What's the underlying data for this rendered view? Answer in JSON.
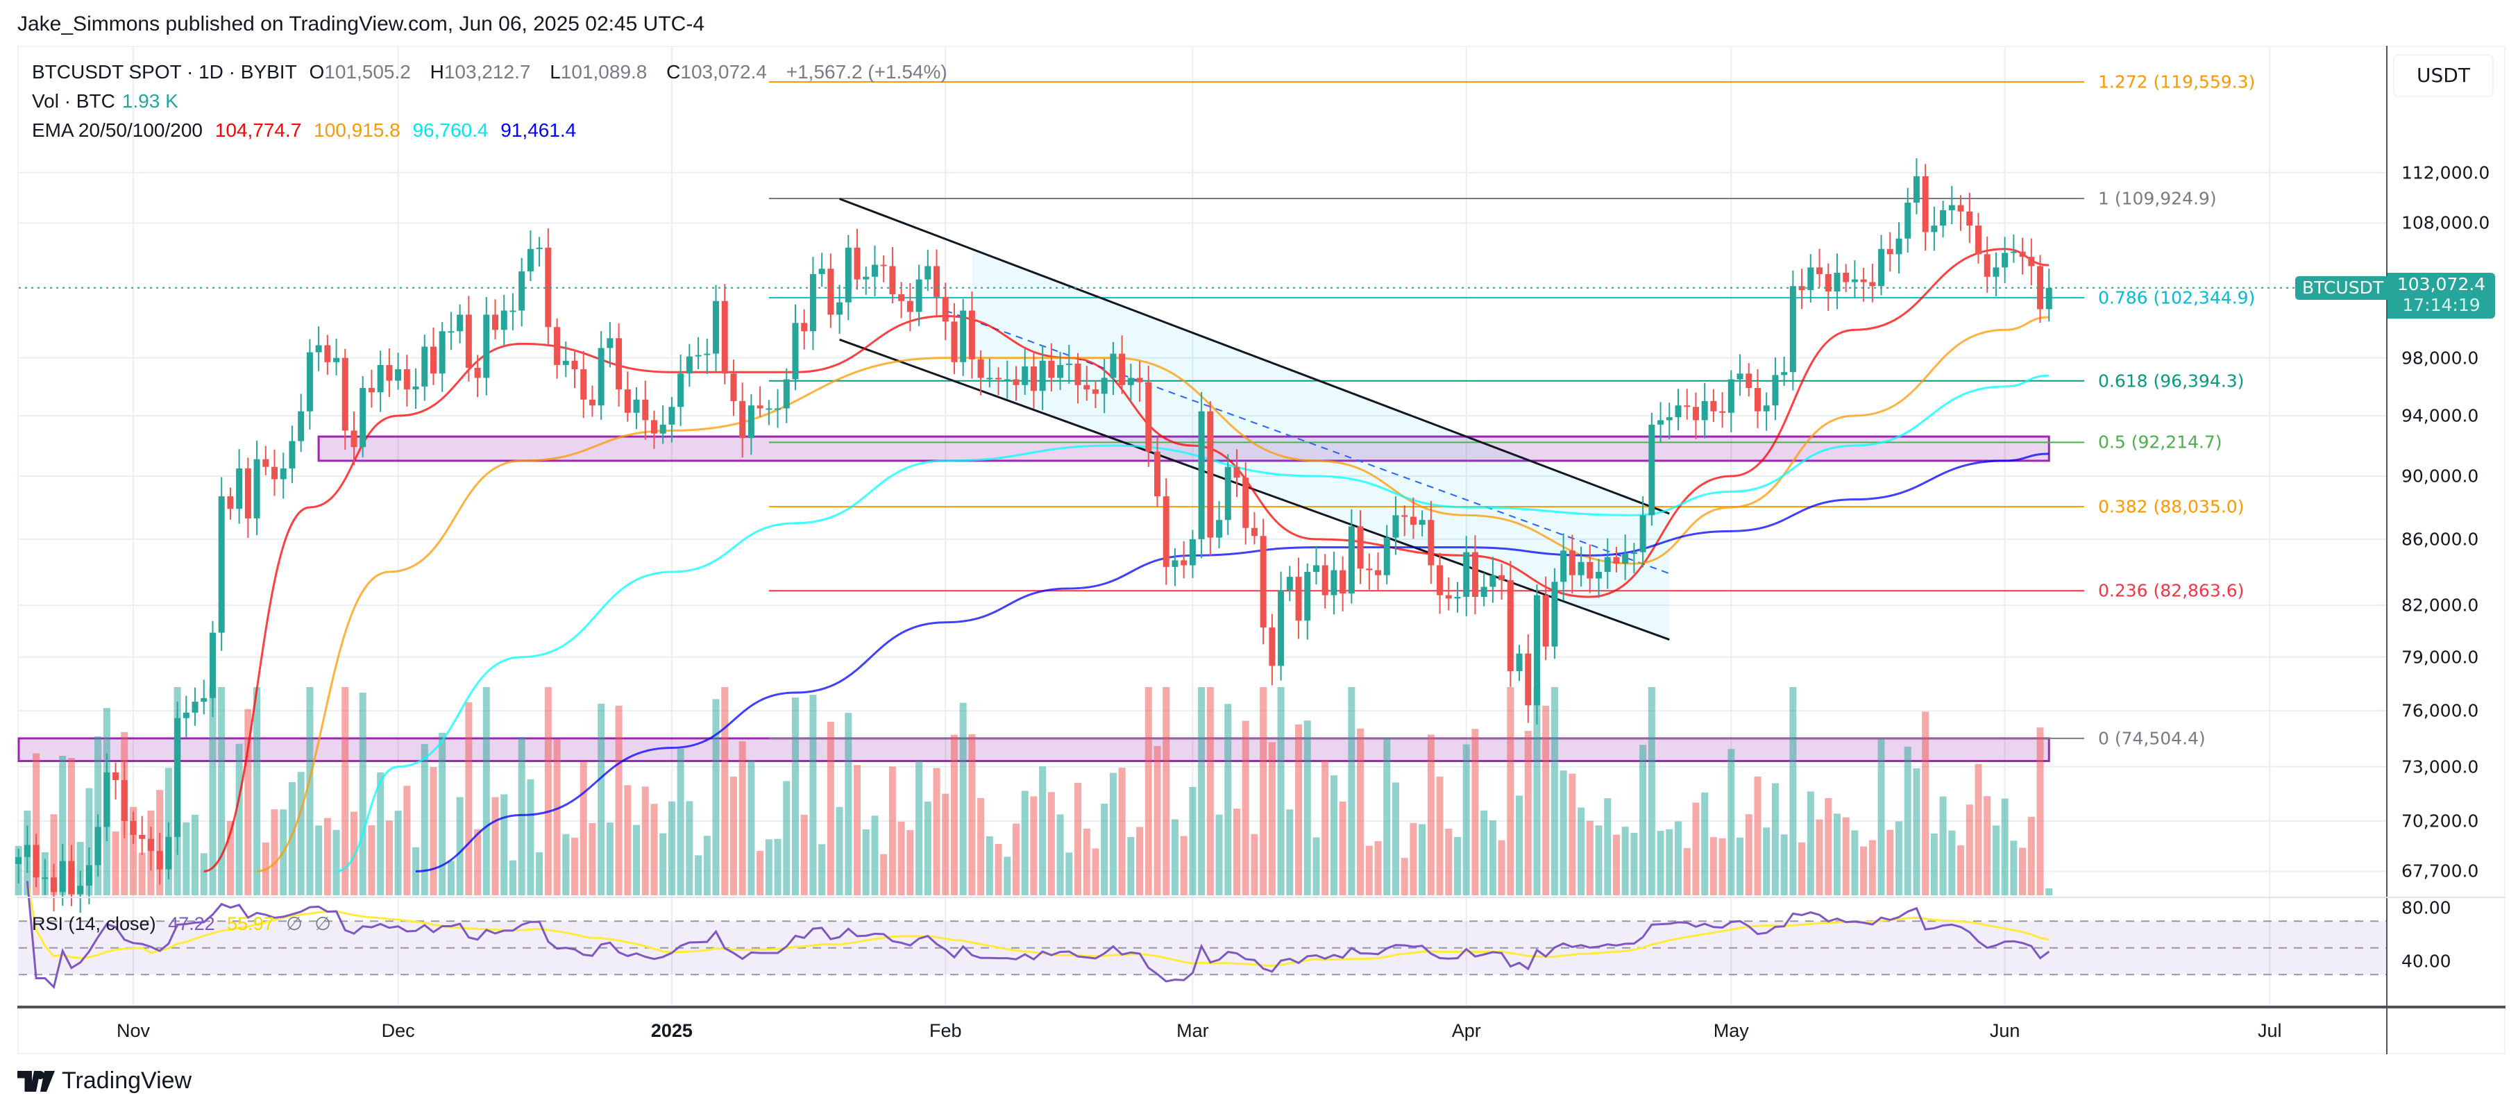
{
  "header": {
    "title": "Jake_Simmons published on TradingView.com, Jun 06, 2025 02:45 UTC-4"
  },
  "legend": {
    "symbol": "BTCUSDT SPOT · 1D · BYBIT",
    "o_label": "O",
    "o": "101,505.2",
    "h_label": "H",
    "h": "103,212.7",
    "l_label": "L",
    "l": "101,089.8",
    "c_label": "C",
    "c": "103,072.4",
    "change": "+1,567.2 (+1.54%)",
    "vol_label": "Vol · BTC",
    "vol": "1.93 K",
    "ema_label": "EMA 20/50/100/200",
    "ema20": "104,774.7",
    "ema50": "100,915.8",
    "ema100": "96,760.4",
    "ema200": "91,461.4"
  },
  "rsi_legend": {
    "label": "RSI (14, close)",
    "value": "47.22",
    "ma": "55.97",
    "na1": "∅",
    "na2": "∅"
  },
  "price_axis": {
    "currency": "USDT",
    "ticks": [
      "112,000.0",
      "108,000.0",
      "98,000.0",
      "94,000.0",
      "90,000.0",
      "86,000.0",
      "82,000.0",
      "79,000.0",
      "76,000.0",
      "73,000.0",
      "70,200.0",
      "67,700.0"
    ],
    "tick_values": [
      112000,
      108000,
      98000,
      94000,
      90000,
      86000,
      82000,
      79000,
      76000,
      73000,
      70200,
      67700
    ],
    "rsi_ticks": [
      "80.00",
      "40.00"
    ]
  },
  "last_price": {
    "symbol": "BTCUSDT",
    "price": "103,072.4",
    "countdown": "17:14:19",
    "value": 103072.4
  },
  "time_axis": {
    "labels": [
      {
        "text": "Nov",
        "date": "2024-11-01"
      },
      {
        "text": "Dec",
        "date": "2024-12-01"
      },
      {
        "text": "2025",
        "date": "2025-01-01"
      },
      {
        "text": "Feb",
        "date": "2025-02-01"
      },
      {
        "text": "Mar",
        "date": "2025-03-01"
      },
      {
        "text": "Apr",
        "date": "2025-04-01"
      },
      {
        "text": "May",
        "date": "2025-05-01"
      },
      {
        "text": "Jun",
        "date": "2025-06-01"
      },
      {
        "text": "Jul",
        "date": "2025-07-01"
      }
    ]
  },
  "fib_levels": [
    {
      "label": "1.272 (119,559.3)",
      "value": 119559.3,
      "color": "#ff9800"
    },
    {
      "label": "1 (109,924.9)",
      "value": 109924.9,
      "color": "#787b86"
    },
    {
      "label": "0.786 (102,344.9)",
      "value": 102344.9,
      "color": "#00bcd4"
    },
    {
      "label": "0.618 (96,394.3)",
      "value": 96394.3,
      "color": "#089981"
    },
    {
      "label": "0.5 (92,214.7)",
      "value": 92214.7,
      "color": "#4caf50"
    },
    {
      "label": "0.382 (88,035.0)",
      "value": 88035.0,
      "color": "#ff9800"
    },
    {
      "label": "0.236 (82,863.6)",
      "value": 82863.6,
      "color": "#f23645"
    },
    {
      "label": "0 (74,504.4)",
      "value": 74504.4,
      "color": "#787b86"
    }
  ],
  "footer": {
    "brand": "TradingView"
  },
  "colors": {
    "up": "#26a69a",
    "down": "#ef5350",
    "ema20": "#ff0000",
    "ema50": "#ff9800",
    "ema100": "#00ffff",
    "ema200": "#0000ff",
    "rsi": "#7e57c2",
    "rsi_ma": "#ffeb3b",
    "zone": "#9c27b0"
  },
  "chart_data": {
    "type": "candlestick",
    "start_date": "2024-10-19",
    "close_thousands": [
      68.4,
      69.0,
      67.4,
      67.4,
      66.7,
      68.2,
      66.6,
      67.0,
      68.0,
      69.9,
      72.7,
      72.3,
      70.2,
      69.5,
      69.3,
      68.7,
      67.8,
      69.4,
      75.6,
      75.9,
      76.5,
      76.7,
      80.4,
      88.7,
      87.9,
      90.5,
      87.3,
      91.1,
      90.6,
      89.8,
      90.5,
      92.3,
      94.3,
      98.4,
      98.9,
      97.7,
      98.0,
      93.0,
      91.9,
      95.9,
      95.6,
      97.5,
      96.4,
      97.2,
      95.8,
      96.0,
      98.8,
      96.9,
      99.9,
      99.9,
      101.1,
      97.3,
      96.6,
      101.1,
      100.0,
      101.4,
      101.4,
      104.3,
      106.0,
      106.1,
      100.2,
      97.5,
      97.8,
      97.2,
      95.1,
      94.7,
      98.7,
      99.4,
      95.8,
      94.2,
      95.1,
      93.7,
      92.8,
      93.4,
      94.6,
      96.9,
      98.1,
      98.2,
      98.3,
      102.1,
      96.9,
      95.0,
      92.5,
      94.7,
      94.5,
      94.5,
      94.5,
      96.5,
      100.5,
      99.9,
      104.1,
      104.5,
      101.1,
      102.0,
      106.1,
      103.7,
      103.9,
      104.8,
      104.7,
      102.6,
      102.1,
      101.3,
      103.7,
      104.7,
      102.4,
      100.6,
      97.7,
      101.4,
      97.9,
      96.6,
      96.6,
      96.5,
      96.5,
      96.1,
      97.4,
      95.7,
      97.8,
      96.6,
      97.5,
      97.6,
      96.1,
      95.8,
      95.5,
      96.6,
      98.3,
      96.1,
      96.6,
      96.3,
      91.6,
      88.7,
      84.3,
      84.7,
      84.4,
      86.0,
      94.3,
      86.1,
      87.2,
      90.6,
      89.9,
      86.7,
      86.2,
      80.7,
      78.5,
      82.9,
      83.7,
      81.1,
      84.0,
      84.4,
      82.6,
      84.1,
      82.7,
      86.8,
      84.2,
      84.1,
      83.8,
      86.1,
      87.5,
      87.4,
      86.9,
      87.2,
      84.4,
      82.6,
      82.4,
      82.5,
      85.2,
      82.5,
      83.1,
      83.8,
      83.5,
      78.2,
      79.2,
      76.3,
      82.6,
      79.6,
      83.4,
      85.3,
      83.8,
      84.6,
      83.6,
      84.0,
      84.9,
      84.5,
      85.1,
      85.2,
      87.5,
      93.4,
      93.7,
      93.9,
      94.7,
      94.6,
      93.7,
      95.0,
      94.3,
      94.2,
      96.5,
      96.9,
      95.9,
      94.3,
      94.7,
      96.8,
      97.0,
      103.2,
      102.9,
      104.6,
      104.1,
      102.8,
      104.2,
      103.5,
      103.7,
      103.5,
      103.2,
      106.0,
      105.6,
      106.8,
      109.6,
      111.7,
      107.3,
      107.8,
      109.0,
      109.4,
      108.9,
      107.8,
      105.6,
      103.9,
      104.6,
      105.7,
      105.8,
      105.4,
      104.7,
      101.5,
      103.07
    ],
    "ema": [
      {
        "period": 20,
        "points": [
          [
            "2024-11-09",
            67.7
          ],
          [
            "2024-11-21",
            88
          ],
          [
            "2024-12-01",
            94
          ],
          [
            "2024-12-15",
            99
          ],
          [
            "2025-01-01",
            97
          ],
          [
            "2025-01-15",
            97
          ],
          [
            "2025-02-01",
            101
          ],
          [
            "2025-02-15",
            98
          ],
          [
            "2025-03-01",
            92
          ],
          [
            "2025-03-15",
            86
          ],
          [
            "2025-04-01",
            85
          ],
          [
            "2025-04-15",
            82.5
          ],
          [
            "2025-05-01",
            90
          ],
          [
            "2025-05-15",
            100
          ],
          [
            "2025-06-01",
            106
          ],
          [
            "2025-06-06",
            104.77
          ]
        ]
      },
      {
        "period": 50,
        "points": [
          [
            "2024-11-15",
            67.7
          ],
          [
            "2024-11-30",
            84
          ],
          [
            "2024-12-15",
            91
          ],
          [
            "2025-01-01",
            93
          ],
          [
            "2025-02-01",
            98
          ],
          [
            "2025-02-20",
            98
          ],
          [
            "2025-03-15",
            91
          ],
          [
            "2025-04-01",
            87.5
          ],
          [
            "2025-04-20",
            84.5
          ],
          [
            "2025-05-01",
            88
          ],
          [
            "2025-05-15",
            94
          ],
          [
            "2025-06-01",
            100
          ],
          [
            "2025-06-06",
            100.92
          ]
        ]
      },
      {
        "period": 100,
        "points": [
          [
            "2024-11-24",
            67.7
          ],
          [
            "2024-12-01",
            73
          ],
          [
            "2024-12-15",
            79
          ],
          [
            "2025-01-01",
            84
          ],
          [
            "2025-01-15",
            87
          ],
          [
            "2025-02-01",
            91
          ],
          [
            "2025-02-20",
            92
          ],
          [
            "2025-03-15",
            90
          ],
          [
            "2025-04-01",
            88
          ],
          [
            "2025-04-20",
            87.5
          ],
          [
            "2025-05-01",
            89
          ],
          [
            "2025-05-15",
            92
          ],
          [
            "2025-06-01",
            96
          ],
          [
            "2025-06-06",
            96.76
          ]
        ]
      },
      {
        "period": 200,
        "points": [
          [
            "2024-12-03",
            67.7
          ],
          [
            "2024-12-15",
            70.5
          ],
          [
            "2025-01-01",
            74
          ],
          [
            "2025-01-15",
            77
          ],
          [
            "2025-02-01",
            81
          ],
          [
            "2025-02-15",
            83
          ],
          [
            "2025-03-01",
            85
          ],
          [
            "2025-03-15",
            85.5
          ],
          [
            "2025-04-01",
            85.5
          ],
          [
            "2025-04-15",
            85
          ],
          [
            "2025-05-01",
            86.5
          ],
          [
            "2025-05-15",
            88.5
          ],
          [
            "2025-06-01",
            91
          ],
          [
            "2025-06-06",
            91.46
          ]
        ]
      }
    ],
    "zones": [
      {
        "from": 91000,
        "to": 92600,
        "start": "2024-11-22",
        "end": "2025-06-06"
      },
      {
        "from": 73300,
        "to": 74504.4,
        "start": "2024-10-19",
        "end": "2025-06-06"
      }
    ],
    "channel": {
      "upper": [
        [
          "2025-01-20",
          109900
        ],
        [
          "2025-04-24",
          87600
        ]
      ],
      "lower": [
        [
          "2025-01-20",
          99300
        ],
        [
          "2025-04-24",
          80000
        ]
      ],
      "mid_dashed": [
        [
          "2025-02-01",
          101400
        ],
        [
          "2025-04-24",
          83900
        ]
      ]
    },
    "fib_start_date": "2025-01-12",
    "y_scale": "log",
    "grid": true
  }
}
